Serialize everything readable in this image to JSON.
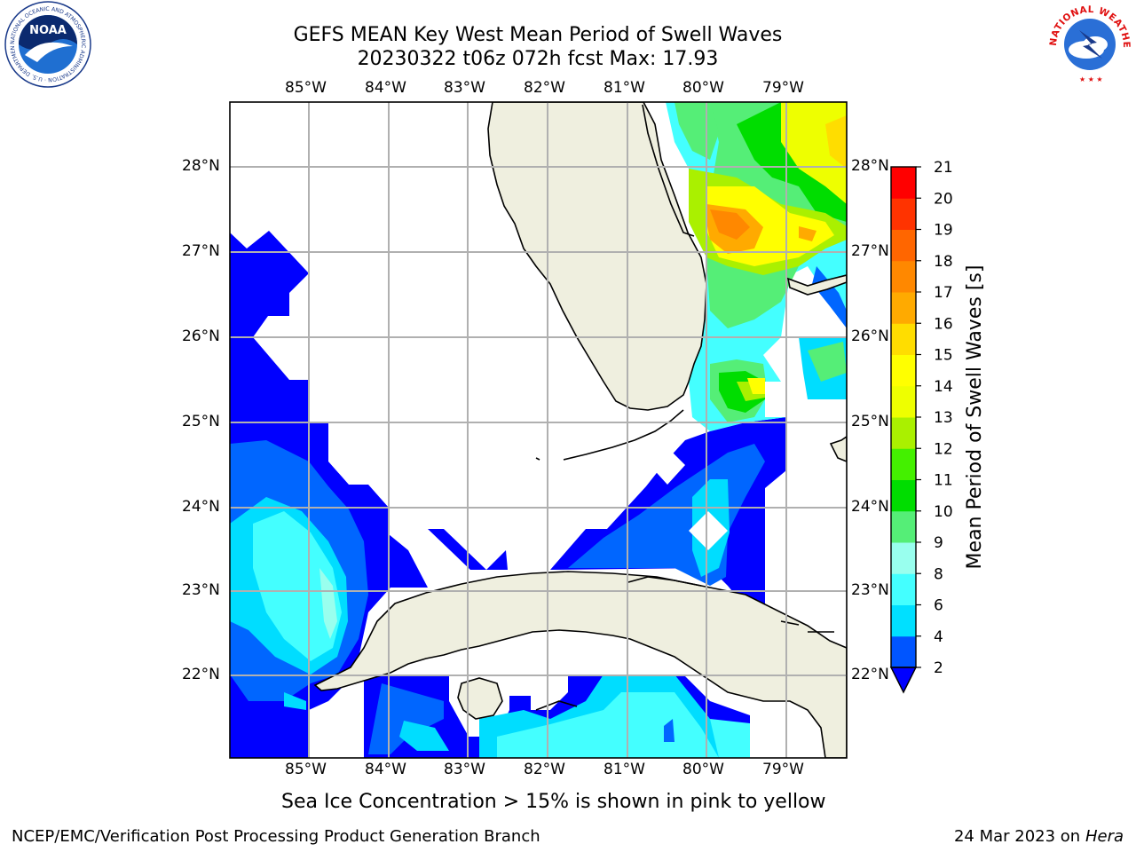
{
  "title": {
    "line1": "GEFS MEAN Key West Mean Period of Swell Waves",
    "line2": "20230322 t06z 072h fcst   Max: 17.93"
  },
  "logos": {
    "left": "NOAA",
    "left_ring": "NATIONAL OCEANIC AND ATMOSPHERIC ADMINISTRATION · U.S. DEPARTMENT OF COMMERCE",
    "right_ring": "NATIONAL WEATHER SERVICE"
  },
  "axes": {
    "lon_labels": [
      "85°W",
      "84°W",
      "83°W",
      "82°W",
      "81°W",
      "80°W",
      "79°W"
    ],
    "lat_labels": [
      "28°N",
      "27°N",
      "26°N",
      "25°N",
      "24°N",
      "23°N",
      "22°N"
    ],
    "lon_range": [
      -86.0,
      -78.3
    ],
    "lat_range": [
      21.0,
      28.8
    ]
  },
  "colorbar": {
    "label": "Mean Period of Swell Waves [s]",
    "ticks": [
      "21",
      "20",
      "19",
      "18",
      "17",
      "16",
      "15",
      "14",
      "13",
      "12",
      "11",
      "10",
      "9",
      "8",
      "6",
      "4",
      "2"
    ],
    "colors": [
      "#0055ff",
      "#00e0ff",
      "#44ffff",
      "#99ffee",
      "#55ee77",
      "#00dd00",
      "#44f000",
      "#aaf000",
      "#eeff00",
      "#ffff00",
      "#ffdd00",
      "#ffaa00",
      "#ff8800",
      "#ff6600",
      "#ff3300",
      "#ff0000"
    ],
    "extend_color": "#0000ff"
  },
  "caption": "Sea Ice Concentration > 15% is shown in pink to yellow",
  "footer": {
    "left": "NCEP/EMC/Verification Post Processing Product Generation Branch",
    "right_date": "24 Mar 2023 on",
    "right_host": "Hera"
  }
}
